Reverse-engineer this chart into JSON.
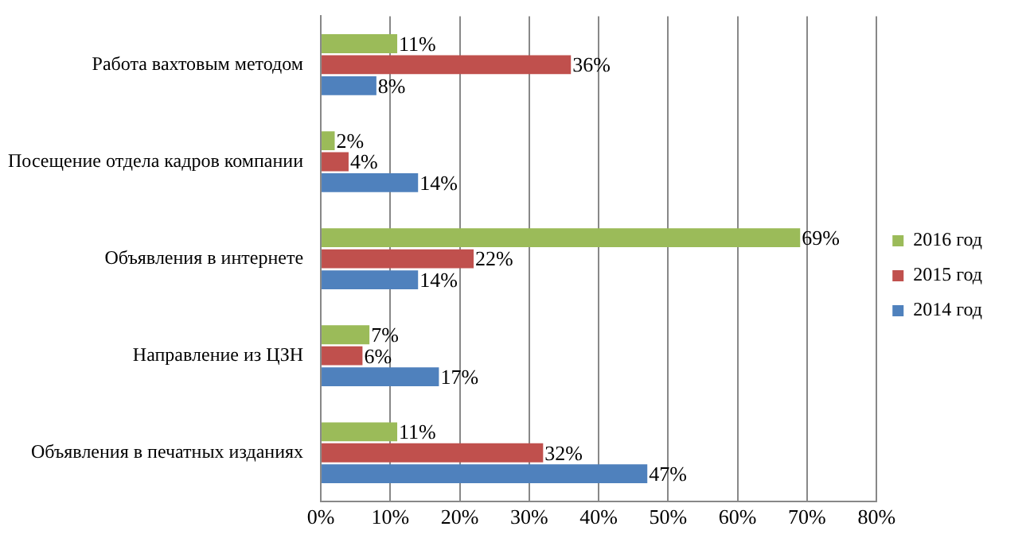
{
  "chart_data": {
    "type": "bar",
    "orientation": "horizontal",
    "categories": [
      "Работа вахтовым методом",
      "Посещение отдела кадров компании",
      "Объявления в интернете",
      "Направление из ЦЗН",
      "Объявления в печатных изданиях"
    ],
    "series": [
      {
        "name": "2016 год",
        "color": "#9bbb59",
        "values": [
          11,
          2,
          69,
          7,
          11
        ],
        "value_labels": [
          "11%",
          "2%",
          "69%",
          "7%",
          "11%"
        ]
      },
      {
        "name": "2015 год",
        "color": "#c0504d",
        "values": [
          36,
          4,
          22,
          6,
          32
        ],
        "value_labels": [
          "36%",
          "4%",
          "22%",
          "6%",
          "32%"
        ]
      },
      {
        "name": "2014 год",
        "color": "#4f81bd",
        "values": [
          8,
          14,
          14,
          17,
          47
        ],
        "value_labels": [
          "8%",
          "14%",
          "14%",
          "17%",
          "47%"
        ]
      }
    ],
    "xlim": [
      0,
      80
    ],
    "xticks": [
      {
        "value": 0,
        "label": "0%"
      },
      {
        "value": 10,
        "label": "10%"
      },
      {
        "value": 20,
        "label": "20%"
      },
      {
        "value": 30,
        "label": "30%"
      },
      {
        "value": 40,
        "label": "40%"
      },
      {
        "value": 50,
        "label": "50%"
      },
      {
        "value": 60,
        "label": "60%"
      },
      {
        "value": 70,
        "label": "70%"
      },
      {
        "value": 80,
        "label": "80%"
      }
    ],
    "grid": "x",
    "legend": "right"
  }
}
